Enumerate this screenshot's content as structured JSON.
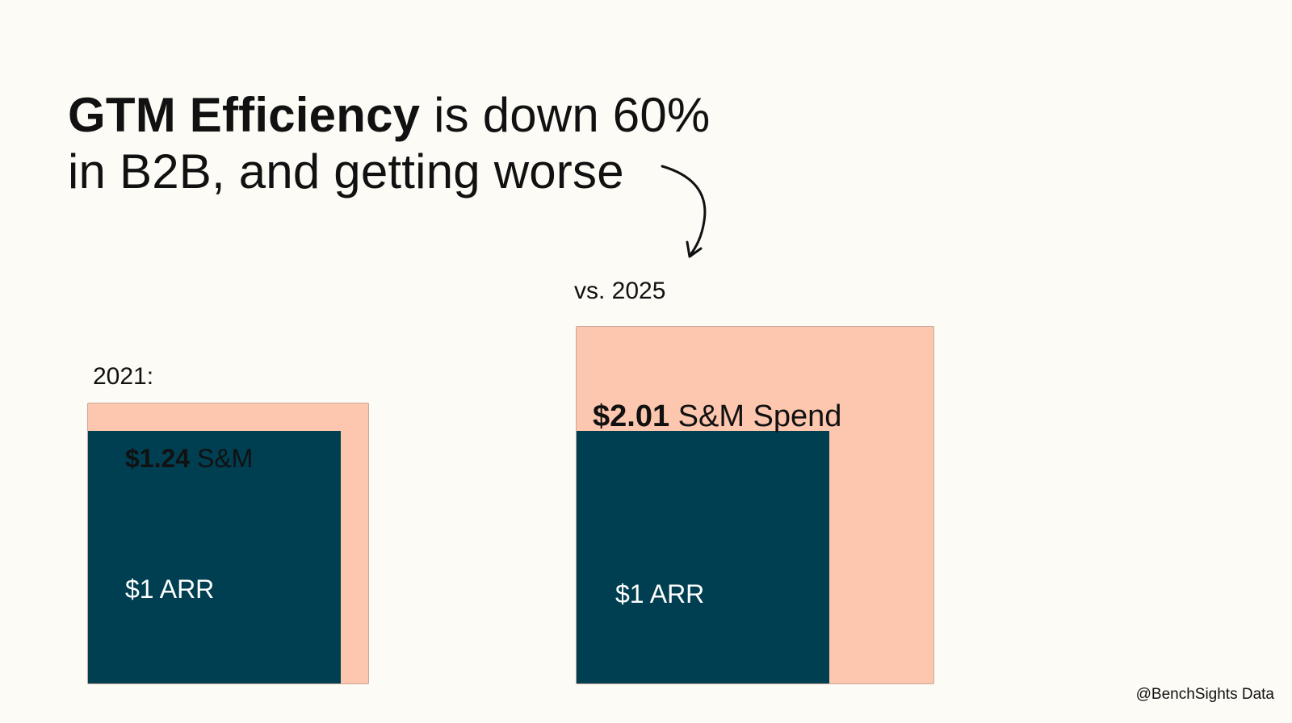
{
  "headline": {
    "bold": "GTM Efficiency",
    "rest_line1": " is down 60%",
    "line2": "in B2B, and getting worse"
  },
  "source": "@BenchSights Data",
  "colors": {
    "background": "#fcfbf6",
    "spend": "#fcc7ae",
    "arr": "#003f51",
    "text": "#111111",
    "arr_text": "#ffffff"
  },
  "chart_data": {
    "type": "proportional-area",
    "title": "GTM Efficiency is down 60% in B2B, and getting worse",
    "unit": "$ S&M spend per $1 ARR",
    "groups": [
      {
        "label": "2021:",
        "year": "2021",
        "spend_value": 1.24,
        "spend_amount": "$1.24",
        "spend_text": "S&M",
        "arr_value": 1,
        "arr_label": "$1 ARR"
      },
      {
        "label": "vs. 2025",
        "year": "2025",
        "spend_value": 2.01,
        "spend_amount": "$2.01",
        "spend_text": "S&M Spend",
        "arr_value": 1,
        "arr_label": "$1 ARR"
      }
    ]
  }
}
